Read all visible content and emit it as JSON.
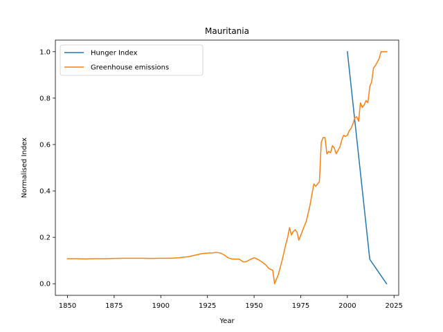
{
  "chart_data": {
    "type": "line",
    "title": "Mauritania",
    "xlabel": "Year",
    "ylabel": "Normalised Index",
    "xlim": [
      1843.5,
      2027.5
    ],
    "ylim": [
      -0.05,
      1.05
    ],
    "xticks": [
      1850,
      1875,
      1900,
      1925,
      1950,
      1975,
      2000,
      2025
    ],
    "yticks": [
      0.0,
      0.2,
      0.4,
      0.6,
      0.8,
      1.0
    ],
    "grid": false,
    "legend_position": "top-left",
    "series": [
      {
        "name": "Hunger Index",
        "color": "#1f77b4",
        "x": [
          2000,
          2012,
          2021
        ],
        "y": [
          1.0,
          0.105,
          0.0
        ]
      },
      {
        "name": "Greenhouse emissions",
        "color": "#ff7f0e",
        "x": [
          1850,
          1855,
          1860,
          1865,
          1870,
          1875,
          1880,
          1885,
          1890,
          1895,
          1900,
          1905,
          1910,
          1915,
          1920,
          1922,
          1925,
          1928,
          1930,
          1932,
          1934,
          1936,
          1938,
          1940,
          1942,
          1944,
          1945,
          1946,
          1948,
          1950,
          1952,
          1954,
          1956,
          1958,
          1960,
          1961,
          1962,
          1963,
          1965,
          1967,
          1968,
          1969,
          1970,
          1971,
          1972,
          1973,
          1974,
          1976,
          1978,
          1980,
          1982,
          1983,
          1984,
          1985,
          1986,
          1987,
          1988,
          1989,
          1990,
          1991,
          1992,
          1993,
          1994,
          1995,
          1996,
          1997,
          1998,
          1999,
          2000,
          2001,
          2002,
          2003,
          2004,
          2005,
          2006,
          2007,
          2008,
          2009,
          2010,
          2011,
          2012,
          2013,
          2014,
          2015,
          2016,
          2017,
          2018,
          2019,
          2020,
          2021
        ],
        "y": [
          0.108,
          0.108,
          0.107,
          0.108,
          0.108,
          0.109,
          0.11,
          0.11,
          0.11,
          0.109,
          0.11,
          0.11,
          0.112,
          0.117,
          0.126,
          0.13,
          0.132,
          0.133,
          0.135,
          0.132,
          0.124,
          0.112,
          0.107,
          0.106,
          0.106,
          0.095,
          0.094,
          0.096,
          0.105,
          0.112,
          0.105,
          0.095,
          0.083,
          0.065,
          0.058,
          0.0,
          0.02,
          0.04,
          0.1,
          0.17,
          0.2,
          0.242,
          0.21,
          0.225,
          0.233,
          0.222,
          0.188,
          0.23,
          0.27,
          0.34,
          0.43,
          0.42,
          0.43,
          0.44,
          0.61,
          0.63,
          0.63,
          0.56,
          0.57,
          0.565,
          0.595,
          0.585,
          0.56,
          0.575,
          0.59,
          0.62,
          0.64,
          0.635,
          0.64,
          0.66,
          0.67,
          0.69,
          0.715,
          0.72,
          0.7,
          0.78,
          0.76,
          0.77,
          0.79,
          0.78,
          0.85,
          0.87,
          0.93,
          0.94,
          0.955,
          0.97,
          1.0,
          1.0,
          1.0,
          1.0
        ]
      }
    ]
  }
}
